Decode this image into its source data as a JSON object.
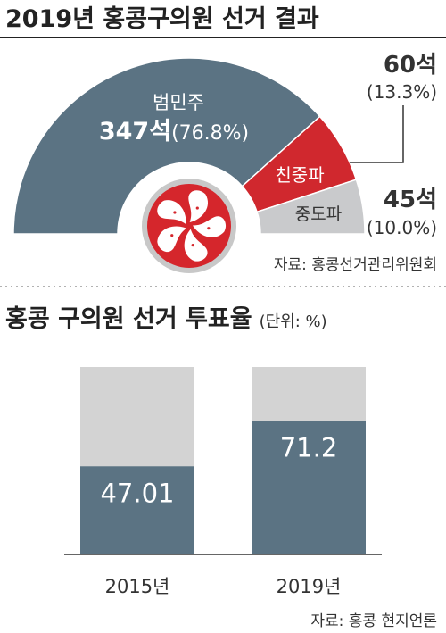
{
  "chart_data": [
    {
      "type": "pie",
      "subtype": "half-donut",
      "title": "2019년 홍콩구의원 선거 결과",
      "slices": [
        {
          "name": "범민주",
          "seats_label": "347석",
          "pct_label": "(76.8%)",
          "value": 76.8,
          "color": "#5b7383"
        },
        {
          "name": "친중파",
          "seats_label": "60석",
          "pct_label": "(13.3%)",
          "value": 13.3,
          "color": "#d0282e"
        },
        {
          "name": "중도파",
          "seats_label": "45석",
          "pct_label": "(10.0%)",
          "value": 10.0,
          "color": "#c9cacc"
        }
      ],
      "source": "자료: 홍콩선거관리위원회"
    },
    {
      "type": "bar",
      "title": "홍콩 구의원 선거 투표율",
      "unit_label": "(단위: %)",
      "categories": [
        "2015년",
        "2019년"
      ],
      "values": [
        47.01,
        71.2
      ],
      "value_labels": [
        "47.01",
        "71.2"
      ],
      "ylim": [
        0,
        100
      ],
      "colors": {
        "bar": "#5b7383",
        "track": "#d3d3d3"
      },
      "source": "자료: 홍콩 현지언론"
    }
  ]
}
